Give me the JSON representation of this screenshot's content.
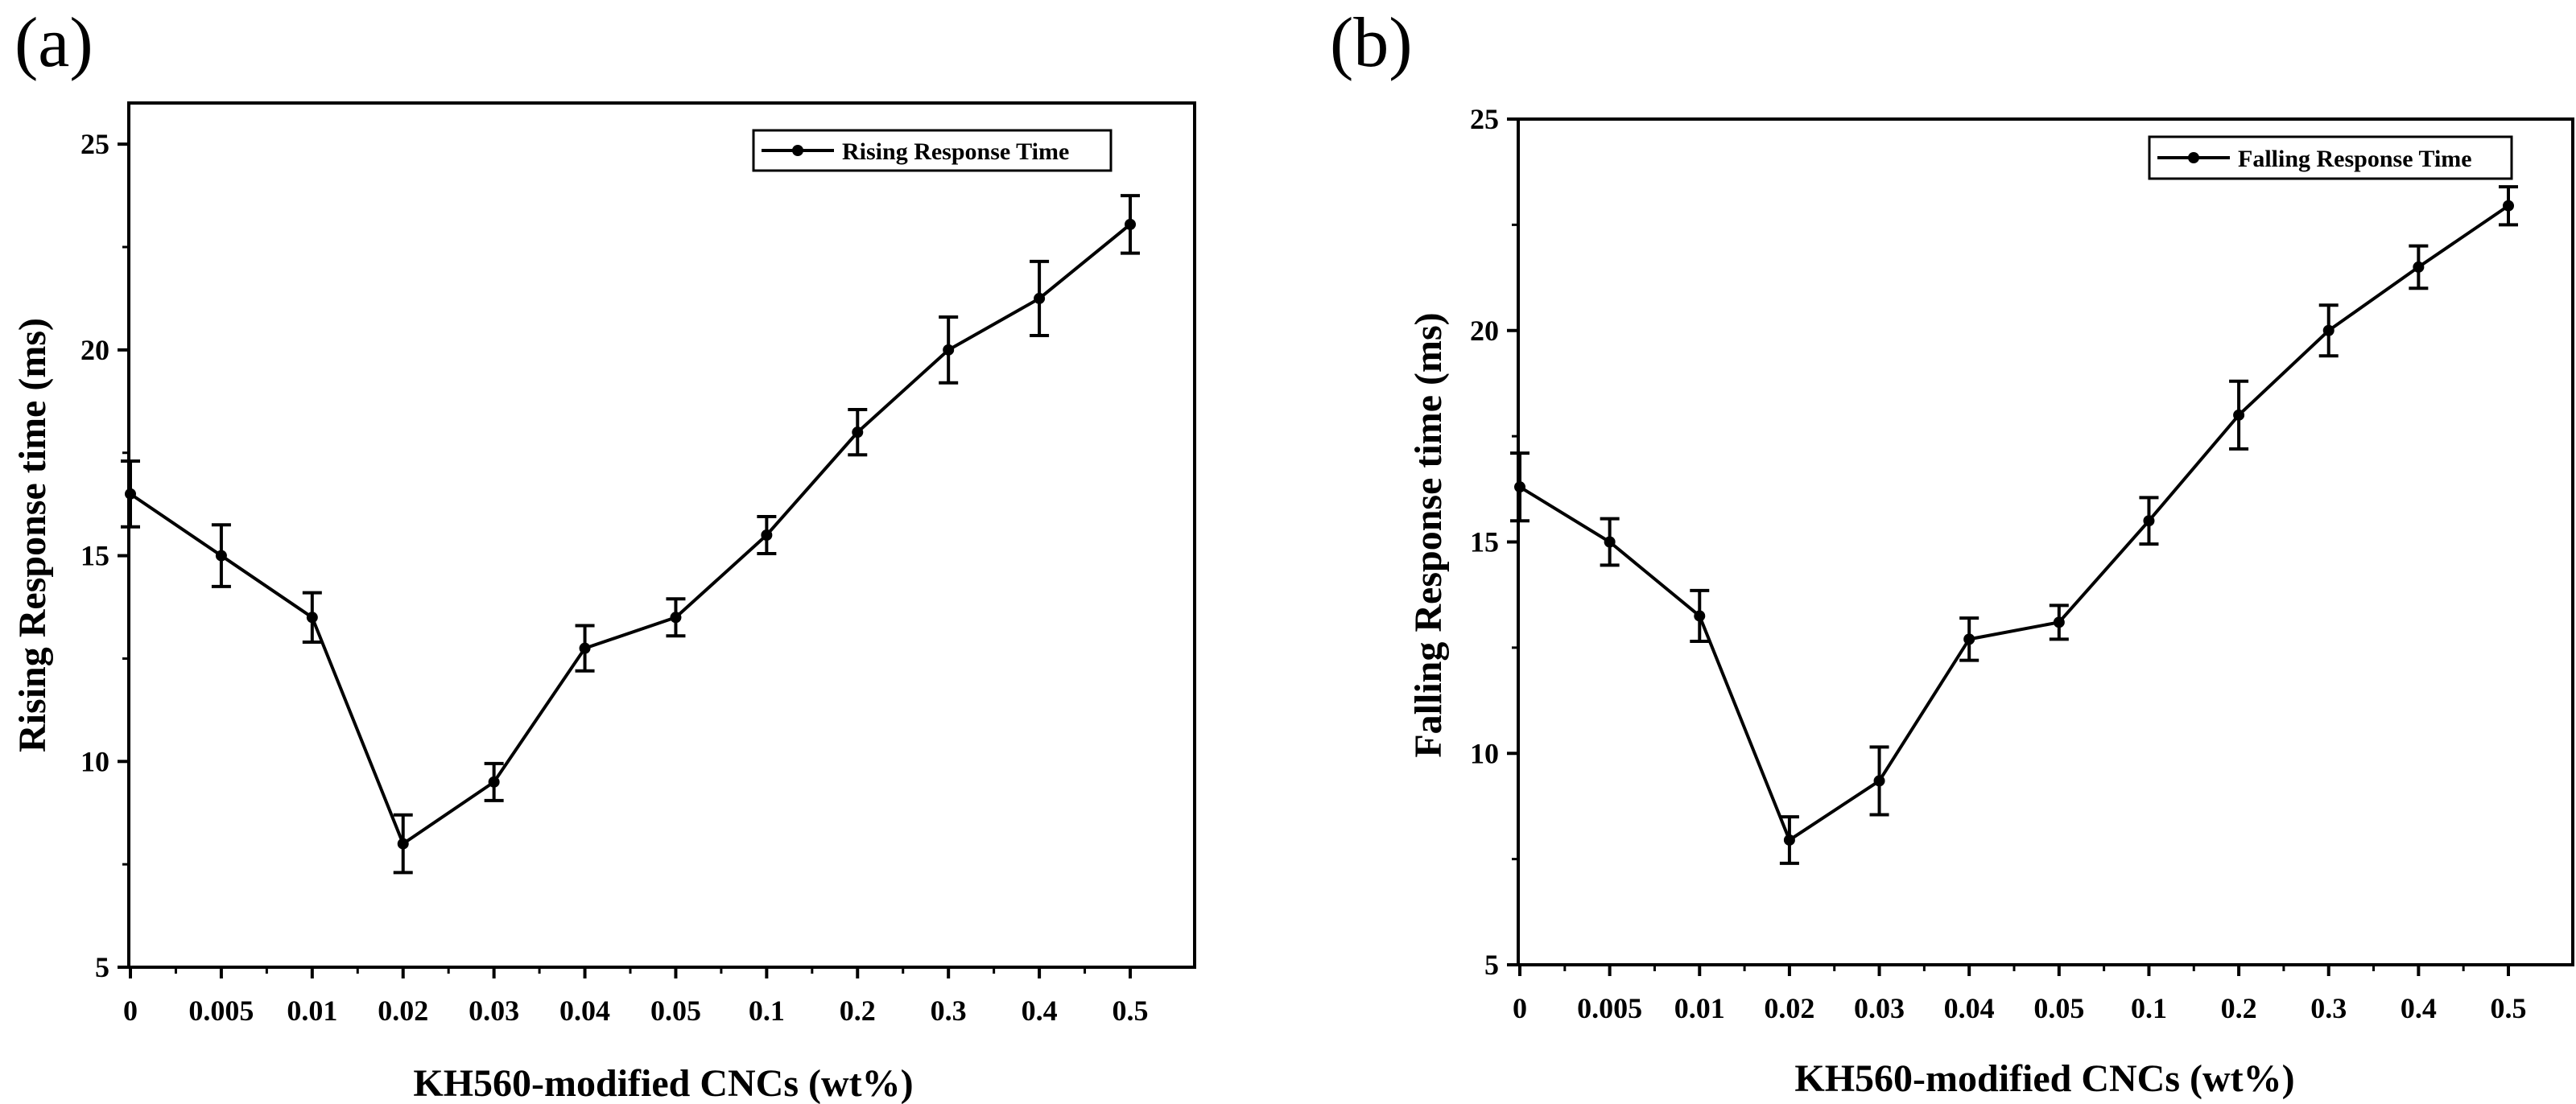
{
  "chart_data": [
    {
      "type": "line",
      "panel_label": "(a)",
      "categories": [
        "0",
        "0.005",
        "0.01",
        "0.02",
        "0.03",
        "0.04",
        "0.05",
        "0.1",
        "0.2",
        "0.3",
        "0.4",
        "0.5"
      ],
      "series": [
        {
          "name": "Rising Response Time",
          "values": [
            16.5,
            15.0,
            13.5,
            8.0,
            9.5,
            12.75,
            13.5,
            15.5,
            18.0,
            20.0,
            21.25,
            23.05
          ],
          "errors": [
            0.8,
            0.75,
            0.6,
            0.7,
            0.45,
            0.55,
            0.45,
            0.45,
            0.55,
            0.8,
            0.9,
            0.7
          ]
        }
      ],
      "xlabel": "KH560-modified CNCs (wt%)",
      "ylabel": "Rising Response time (ms)",
      "ylim": [
        5,
        26
      ],
      "yticks": [
        5,
        10,
        15,
        20,
        25
      ],
      "legend_position": "top-right"
    },
    {
      "type": "line",
      "panel_label": "(b)",
      "categories": [
        "0",
        "0.005",
        "0.01",
        "0.02",
        "0.03",
        "0.04",
        "0.05",
        "0.1",
        "0.2",
        "0.3",
        "0.4",
        "0.5"
      ],
      "series": [
        {
          "name": "Falling Response Time",
          "values": [
            16.3,
            15.0,
            13.25,
            7.95,
            9.35,
            12.7,
            13.1,
            15.5,
            18.0,
            20.0,
            21.5,
            22.95
          ],
          "errors": [
            0.8,
            0.55,
            0.6,
            0.55,
            0.8,
            0.5,
            0.4,
            0.55,
            0.8,
            0.6,
            0.5,
            0.45
          ]
        }
      ],
      "xlabel": "KH560-modified CNCs (wt%)",
      "ylabel": "Falling Response time (ms)",
      "ylim": [
        5,
        25
      ],
      "yticks": [
        5,
        10,
        15,
        20,
        25
      ],
      "legend_position": "top-right"
    }
  ]
}
